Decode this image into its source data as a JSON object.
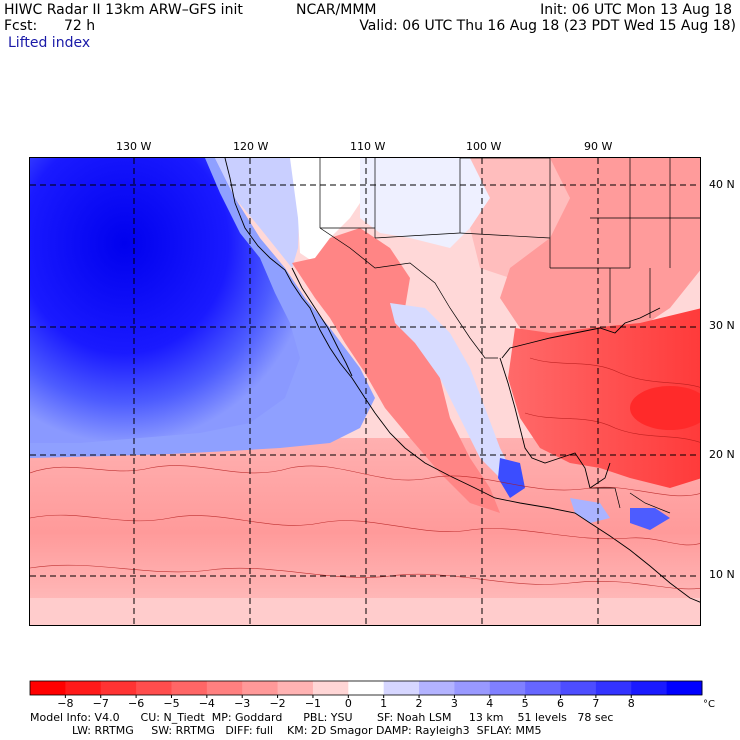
{
  "header": {
    "left_line1": "HIWC Radar II 13km ARW–GFS init",
    "left_line2_label": "Fcst:",
    "left_line2_value": "72 h",
    "field": "Lifted index",
    "center": "NCAR/MMM",
    "right_line1": "Init: 06 UTC Mon 13 Aug 18",
    "right_line2": "Valid: 06 UTC Thu 16 Aug 18 (23 PDT Wed 15 Aug 18)"
  },
  "map": {
    "lon_labels": [
      "130 W",
      "120 W",
      "110 W",
      "100 W",
      "90 W"
    ],
    "lat_labels": [
      "40 N",
      "30 N",
      "20 N",
      "10 N"
    ]
  },
  "colorbar": {
    "ticks": [
      "−8",
      "−7",
      "−6",
      "−5",
      "−4",
      "−3",
      "−2",
      "−1",
      "0",
      "1",
      "2",
      "3",
      "4",
      "5",
      "6",
      "7",
      "8"
    ],
    "unit": "°C",
    "colors": [
      "#ff0000",
      "#ff1a1a",
      "#ff3333",
      "#ff4d4d",
      "#ff6666",
      "#ff8080",
      "#ff9999",
      "#ffb3b3",
      "#ffd6d6",
      "#ffffff",
      "#d6d6ff",
      "#b3b3ff",
      "#9999ff",
      "#8080ff",
      "#6666ff",
      "#4d4dff",
      "#3333ff",
      "#1a1aff",
      "#0000ff"
    ]
  },
  "footer": {
    "line1": "Model Info: V4.0      CU: N_Tiedt  MP: Goddard      PBL: YSU       SF: Noah LSM     13 km    51 levels   78 sec",
    "line2": "            LW: RRTMG     SW: RRTMG   DIFF: full    KM: 2D Smagor DAMP: Rayleigh3  SFLAY: MM5"
  }
}
